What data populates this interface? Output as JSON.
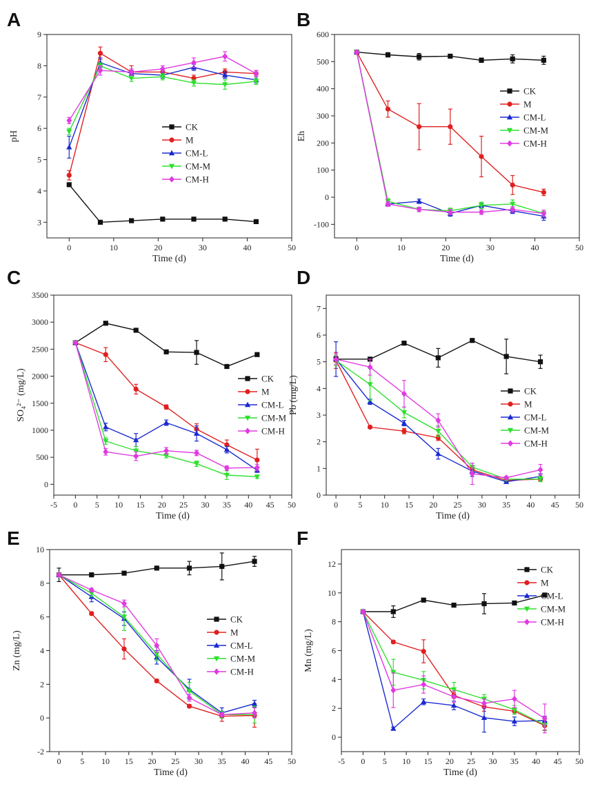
{
  "colors": {
    "CK": "#111111",
    "M": "#e02020",
    "CM-L": "#1a2ad0",
    "CM-M": "#2ee02e",
    "CM-H": "#e03ae0"
  },
  "chart_data": [
    {
      "panel": "A",
      "type": "line",
      "xlabel": "Time (d)",
      "ylabel": "pH",
      "xlim": [
        -5,
        50
      ],
      "ylim": [
        2.5,
        9
      ],
      "xticks": [
        0,
        10,
        20,
        30,
        40,
        50
      ],
      "yticks": [
        3,
        4,
        5,
        6,
        7,
        8,
        9
      ],
      "legend_position": "center",
      "series": [
        {
          "name": "CK",
          "x": [
            0,
            7,
            14,
            21,
            28,
            35,
            42
          ],
          "values": [
            4.2,
            3.0,
            3.05,
            3.1,
            3.1,
            3.1,
            3.02
          ],
          "err": [
            0.05,
            0.04,
            0.03,
            0.03,
            0.03,
            0.03,
            0.03
          ]
        },
        {
          "name": "M",
          "x": [
            0,
            7,
            14,
            21,
            28,
            35,
            42
          ],
          "values": [
            4.5,
            8.4,
            7.8,
            7.8,
            7.6,
            7.8,
            7.75
          ],
          "err": [
            0.15,
            0.2,
            0.2,
            0.1,
            0.1,
            0.1,
            0.1
          ]
        },
        {
          "name": "CM-L",
          "x": [
            0,
            7,
            14,
            21,
            28,
            35,
            42
          ],
          "values": [
            5.4,
            8.1,
            7.75,
            7.7,
            7.95,
            7.7,
            7.55
          ],
          "err": [
            0.35,
            0.15,
            0.1,
            0.1,
            0.1,
            0.1,
            0.1
          ]
        },
        {
          "name": "CM-M",
          "x": [
            0,
            7,
            14,
            21,
            28,
            35,
            42
          ],
          "values": [
            5.9,
            8.0,
            7.6,
            7.65,
            7.45,
            7.4,
            7.5
          ],
          "err": [
            0.1,
            0.1,
            0.1,
            0.1,
            0.1,
            0.15,
            0.1
          ]
        },
        {
          "name": "CM-H",
          "x": [
            0,
            7,
            14,
            21,
            28,
            35,
            42
          ],
          "values": [
            6.25,
            7.85,
            7.8,
            7.9,
            8.1,
            8.3,
            7.75
          ],
          "err": [
            0.1,
            0.15,
            0.1,
            0.1,
            0.15,
            0.15,
            0.1
          ]
        }
      ]
    },
    {
      "panel": "B",
      "type": "line",
      "xlabel": "Time (d)",
      "ylabel": "Eh",
      "xlim": [
        -5,
        50
      ],
      "ylim": [
        -150,
        600
      ],
      "xticks": [
        0,
        10,
        20,
        30,
        40,
        50
      ],
      "yticks": [
        -100,
        0,
        100,
        200,
        300,
        400,
        500,
        600
      ],
      "legend_position": "right",
      "series": [
        {
          "name": "CK",
          "x": [
            0,
            7,
            14,
            21,
            28,
            35,
            42
          ],
          "values": [
            535,
            525,
            518,
            520,
            505,
            510,
            505
          ],
          "err": [
            5,
            8,
            12,
            6,
            8,
            15,
            15
          ]
        },
        {
          "name": "M",
          "x": [
            0,
            7,
            14,
            21,
            28,
            35,
            42
          ],
          "values": [
            535,
            325,
            260,
            260,
            150,
            45,
            18
          ],
          "err": [
            5,
            30,
            85,
            65,
            75,
            35,
            12
          ]
        },
        {
          "name": "CM-L",
          "x": [
            0,
            7,
            14,
            21,
            28,
            35,
            42
          ],
          "values": [
            535,
            -25,
            -15,
            -60,
            -30,
            -50,
            -70
          ],
          "err": [
            5,
            8,
            8,
            10,
            8,
            10,
            15
          ]
        },
        {
          "name": "CM-M",
          "x": [
            0,
            7,
            14,
            21,
            28,
            35,
            42
          ],
          "values": [
            535,
            -15,
            -45,
            -50,
            -30,
            -25,
            -60
          ],
          "err": [
            5,
            10,
            8,
            10,
            12,
            15,
            12
          ]
        },
        {
          "name": "CM-H",
          "x": [
            0,
            7,
            14,
            21,
            28,
            35,
            42
          ],
          "values": [
            535,
            -25,
            -45,
            -55,
            -55,
            -45,
            -60
          ],
          "err": [
            5,
            8,
            8,
            10,
            8,
            10,
            12
          ]
        }
      ]
    },
    {
      "panel": "C",
      "type": "line",
      "xlabel": "Time (d)",
      "ylabel": "SO₄²⁻ (mg/L)",
      "xlim": [
        -5,
        50
      ],
      "ylim": [
        -200,
        3500
      ],
      "xticks": [
        -5,
        0,
        5,
        10,
        15,
        20,
        25,
        30,
        35,
        40,
        45,
        50
      ],
      "yticks": [
        0,
        500,
        1000,
        1500,
        2000,
        2500,
        3000,
        3500
      ],
      "legend_position": "right",
      "series": [
        {
          "name": "CK",
          "x": [
            0,
            7,
            14,
            21,
            28,
            35,
            42
          ],
          "values": [
            2620,
            2980,
            2850,
            2450,
            2440,
            2180,
            2400
          ],
          "err": [
            20,
            30,
            30,
            30,
            220,
            30,
            30
          ]
        },
        {
          "name": "M",
          "x": [
            0,
            7,
            14,
            21,
            28,
            35,
            42
          ],
          "values": [
            2620,
            2400,
            1760,
            1430,
            1020,
            730,
            450
          ],
          "err": [
            20,
            130,
            90,
            40,
            100,
            90,
            200
          ]
        },
        {
          "name": "CM-L",
          "x": [
            0,
            7,
            14,
            21,
            28,
            35,
            42
          ],
          "values": [
            2620,
            1060,
            820,
            1140,
            940,
            640,
            260
          ],
          "err": [
            20,
            70,
            120,
            50,
            140,
            60,
            40
          ]
        },
        {
          "name": "CM-M",
          "x": [
            0,
            7,
            14,
            21,
            28,
            35,
            42
          ],
          "values": [
            2620,
            800,
            620,
            530,
            380,
            170,
            140
          ],
          "err": [
            20,
            60,
            80,
            40,
            50,
            80,
            30
          ]
        },
        {
          "name": "CM-H",
          "x": [
            0,
            7,
            14,
            21,
            28,
            35,
            42
          ],
          "values": [
            2620,
            600,
            520,
            620,
            580,
            300,
            310
          ],
          "err": [
            20,
            60,
            80,
            60,
            50,
            40,
            60
          ]
        }
      ]
    },
    {
      "panel": "D",
      "type": "line",
      "xlabel": "Time (d)",
      "ylabel": "Pb (mg/L)",
      "xlim": [
        -2,
        50
      ],
      "ylim": [
        0,
        7.5
      ],
      "xticks": [
        0,
        5,
        10,
        15,
        20,
        25,
        30,
        35,
        40,
        45,
        50
      ],
      "yticks": [
        0,
        1,
        2,
        3,
        4,
        5,
        6,
        7
      ],
      "legend_position": "right",
      "series": [
        {
          "name": "CK",
          "x": [
            0,
            7,
            14,
            21,
            28,
            35,
            42
          ],
          "values": [
            5.1,
            5.1,
            5.7,
            5.15,
            5.8,
            5.2,
            5.0
          ],
          "err": [
            0.1,
            0.05,
            0.05,
            0.35,
            0.05,
            0.65,
            0.25
          ]
        },
        {
          "name": "M",
          "x": [
            0,
            7,
            14,
            21,
            28,
            35,
            42
          ],
          "values": [
            5.05,
            2.55,
            2.4,
            2.15,
            0.95,
            0.55,
            0.6
          ],
          "err": [
            0.3,
            0.05,
            0.1,
            0.1,
            0.1,
            0.05,
            0.05
          ]
        },
        {
          "name": "CM-L",
          "x": [
            0,
            7,
            14,
            21,
            28,
            35,
            42
          ],
          "values": [
            5.1,
            3.5,
            2.7,
            1.55,
            0.9,
            0.5,
            0.7
          ],
          "err": [
            0.65,
            0.1,
            0.1,
            0.2,
            0.2,
            0.05,
            0.1
          ]
        },
        {
          "name": "CM-M",
          "x": [
            0,
            7,
            14,
            21,
            28,
            35,
            42
          ],
          "values": [
            5.05,
            4.15,
            3.1,
            2.4,
            1.05,
            0.6,
            0.6
          ],
          "err": [
            0.2,
            0.6,
            0.2,
            0.2,
            0.15,
            0.05,
            0.1
          ]
        },
        {
          "name": "CM-H",
          "x": [
            0,
            7,
            14,
            21,
            28,
            35,
            42
          ],
          "values": [
            5.1,
            4.8,
            3.8,
            2.8,
            0.8,
            0.65,
            0.95
          ],
          "err": [
            0.2,
            0.3,
            0.5,
            0.25,
            0.4,
            0.05,
            0.2
          ]
        }
      ]
    },
    {
      "panel": "E",
      "type": "line",
      "xlabel": "Time (d)",
      "ylabel": "Zn (mg/L)",
      "xlim": [
        -2,
        50
      ],
      "ylim": [
        -2,
        10
      ],
      "xticks": [
        0,
        5,
        10,
        15,
        20,
        25,
        30,
        35,
        40,
        45,
        50
      ],
      "yticks": [
        -2,
        0,
        2,
        4,
        6,
        8,
        10
      ],
      "legend_position": "right",
      "series": [
        {
          "name": "CK",
          "x": [
            0,
            7,
            14,
            21,
            28,
            35,
            42
          ],
          "values": [
            8.5,
            8.5,
            8.6,
            8.9,
            8.9,
            9.0,
            9.3
          ],
          "err": [
            0.4,
            0.05,
            0.05,
            0.1,
            0.4,
            0.8,
            0.3
          ]
        },
        {
          "name": "M",
          "x": [
            0,
            7,
            14,
            21,
            28,
            35,
            42
          ],
          "values": [
            8.5,
            6.2,
            4.1,
            2.2,
            0.7,
            0.1,
            0.15
          ],
          "err": [
            0.1,
            0.1,
            0.6,
            0.1,
            0.1,
            0.3,
            0.7
          ]
        },
        {
          "name": "CM-L",
          "x": [
            0,
            7,
            14,
            21,
            28,
            35,
            42
          ],
          "values": [
            8.5,
            7.2,
            5.9,
            3.6,
            1.7,
            0.3,
            0.85
          ],
          "err": [
            0.1,
            0.3,
            0.4,
            0.4,
            0.6,
            0.3,
            0.2
          ]
        },
        {
          "name": "CM-M",
          "x": [
            0,
            7,
            14,
            21,
            28,
            35,
            42
          ],
          "values": [
            8.5,
            7.4,
            6.0,
            3.8,
            1.6,
            0.2,
            0.2
          ],
          "err": [
            0.1,
            0.2,
            0.8,
            0.4,
            0.5,
            0.2,
            0.5
          ]
        },
        {
          "name": "CM-H",
          "x": [
            0,
            7,
            14,
            21,
            28,
            35,
            42
          ],
          "values": [
            8.5,
            7.6,
            6.8,
            4.3,
            1.2,
            0.2,
            0.3
          ],
          "err": [
            0.1,
            0.1,
            0.2,
            0.4,
            0.2,
            0.1,
            0.3
          ]
        }
      ]
    },
    {
      "panel": "F",
      "type": "line",
      "xlabel": "Time (d)",
      "ylabel": "Mn (mg/L)",
      "xlim": [
        -5,
        50
      ],
      "ylim": [
        -1,
        13
      ],
      "xticks": [
        -5,
        0,
        5,
        10,
        15,
        20,
        25,
        30,
        35,
        40,
        45,
        50
      ],
      "yticks": [
        0,
        2,
        4,
        6,
        8,
        10,
        12
      ],
      "legend_position": "right",
      "series": [
        {
          "name": "CK",
          "x": [
            0,
            7,
            14,
            21,
            28,
            35,
            42
          ],
          "values": [
            8.7,
            8.7,
            9.5,
            9.15,
            9.25,
            9.3,
            9.85
          ],
          "err": [
            0.1,
            0.4,
            0.1,
            0.1,
            0.7,
            0.1,
            0.1
          ]
        },
        {
          "name": "M",
          "x": [
            0,
            7,
            14,
            21,
            28,
            35,
            42
          ],
          "values": [
            8.7,
            6.6,
            5.95,
            2.9,
            2.1,
            1.8,
            0.8
          ],
          "err": [
            0.1,
            0.1,
            0.8,
            0.2,
            0.3,
            0.2,
            0.3
          ]
        },
        {
          "name": "CM-L",
          "x": [
            0,
            7,
            14,
            21,
            28,
            35,
            42
          ],
          "values": [
            8.7,
            0.6,
            2.45,
            2.2,
            1.35,
            1.1,
            1.15
          ],
          "err": [
            0.1,
            0.1,
            0.2,
            0.3,
            1.0,
            0.3,
            0.3
          ]
        },
        {
          "name": "CM-M",
          "x": [
            0,
            7,
            14,
            21,
            28,
            35,
            42
          ],
          "values": [
            8.7,
            4.5,
            3.95,
            3.3,
            2.65,
            1.9,
            0.85
          ],
          "err": [
            0.1,
            0.9,
            0.6,
            0.5,
            0.3,
            0.3,
            0.4
          ]
        },
        {
          "name": "CM-H",
          "x": [
            0,
            7,
            14,
            21,
            28,
            35,
            42
          ],
          "values": [
            8.7,
            3.25,
            3.65,
            2.8,
            2.35,
            2.65,
            1.3
          ],
          "err": [
            0.1,
            1.2,
            0.6,
            0.4,
            0.3,
            0.6,
            1.0
          ]
        }
      ]
    }
  ]
}
